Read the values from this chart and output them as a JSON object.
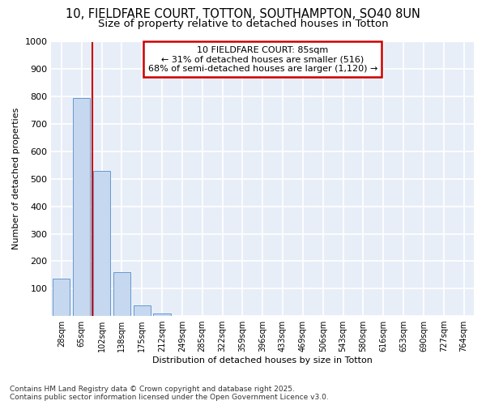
{
  "title_line1": "10, FIELDFARE COURT, TOTTON, SOUTHAMPTON, SO40 8UN",
  "title_line2": "Size of property relative to detached houses in Totton",
  "xlabel": "Distribution of detached houses by size in Totton",
  "ylabel": "Number of detached properties",
  "categories": [
    "28sqm",
    "65sqm",
    "102sqm",
    "138sqm",
    "175sqm",
    "212sqm",
    "249sqm",
    "285sqm",
    "322sqm",
    "359sqm",
    "396sqm",
    "433sqm",
    "469sqm",
    "506sqm",
    "543sqm",
    "580sqm",
    "616sqm",
    "653sqm",
    "690sqm",
    "727sqm",
    "764sqm"
  ],
  "values": [
    135,
    795,
    530,
    160,
    40,
    10,
    0,
    0,
    0,
    0,
    0,
    0,
    0,
    0,
    0,
    0,
    0,
    0,
    0,
    0,
    0
  ],
  "bar_color": "#c5d8f0",
  "bar_edgecolor": "#6699cc",
  "annotation_title": "10 FIELDFARE COURT: 85sqm",
  "annotation_line1": "← 31% of detached houses are smaller (516)",
  "annotation_line2": "68% of semi-detached houses are larger (1,120) →",
  "annotation_box_facecolor": "#ffffff",
  "annotation_box_edgecolor": "#cc0000",
  "redline_color": "#cc0000",
  "ylim": [
    0,
    1000
  ],
  "yticks": [
    0,
    100,
    200,
    300,
    400,
    500,
    600,
    700,
    800,
    900,
    1000
  ],
  "plot_bgcolor": "#e8eef8",
  "fig_bgcolor": "#ffffff",
  "grid_color": "#ffffff",
  "footer_line1": "Contains HM Land Registry data © Crown copyright and database right 2025.",
  "footer_line2": "Contains public sector information licensed under the Open Government Licence v3.0.",
  "figsize": [
    6.0,
    5.0
  ],
  "dpi": 100,
  "title1_fontsize": 10.5,
  "title2_fontsize": 9.5,
  "axis_label_fontsize": 8,
  "tick_fontsize": 8,
  "annotation_fontsize": 8,
  "footer_fontsize": 6.5
}
